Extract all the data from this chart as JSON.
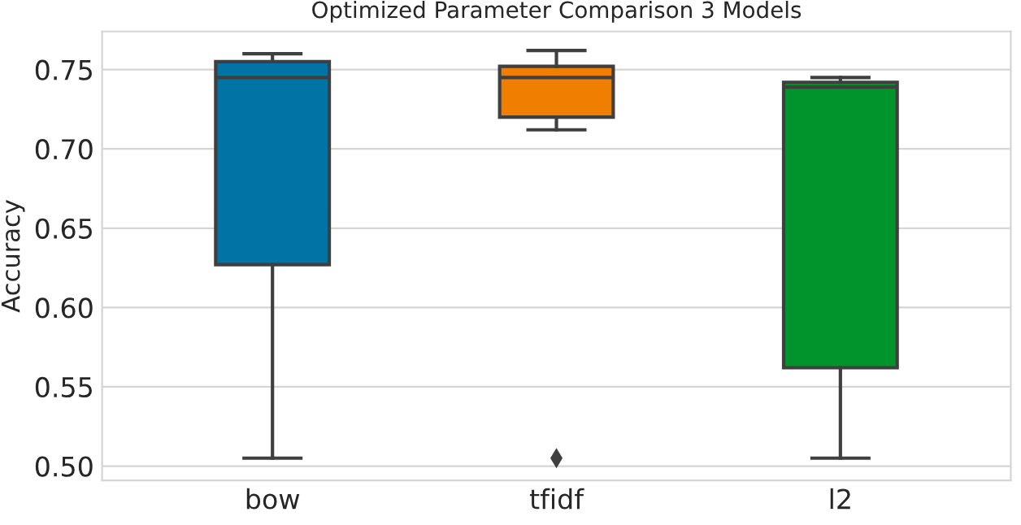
{
  "chart_data": {
    "type": "box",
    "title": "Optimized Parameter Comparison 3 Models",
    "ylabel": "Accuracy",
    "categories": [
      "bow",
      "tfidf",
      "l2"
    ],
    "boxes": [
      {
        "low": 0.505,
        "q1": 0.627,
        "median": 0.745,
        "q3": 0.755,
        "high": 0.76
      },
      {
        "low": 0.712,
        "q1": 0.72,
        "median": 0.745,
        "q3": 0.752,
        "high": 0.762,
        "outliers": [
          0.505
        ]
      },
      {
        "low": 0.505,
        "q1": 0.562,
        "median": 0.739,
        "q3": 0.742,
        "high": 0.745
      }
    ],
    "colors": [
      "#0173a5",
      "#f07e00",
      "#02942c"
    ],
    "ylim": [
      0.491,
      0.774
    ],
    "yticks": [
      {
        "value": 0.5,
        "label": "0.50"
      },
      {
        "value": 0.55,
        "label": "0.55"
      },
      {
        "value": 0.6,
        "label": "0.60"
      },
      {
        "value": 0.65,
        "label": "0.65"
      },
      {
        "value": 0.7,
        "label": "0.70"
      },
      {
        "value": 0.75,
        "label": "0.75"
      }
    ],
    "grid": "y",
    "legend": false
  }
}
